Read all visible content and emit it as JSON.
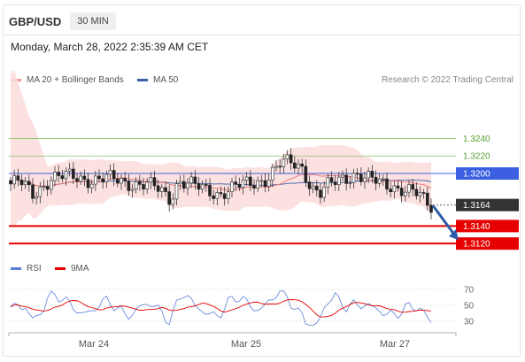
{
  "header": {
    "symbol": "GBP/USD",
    "timeframe": "30 MIN"
  },
  "timestamp": "Monday, March 28, 2022 2:35:39 AM CET",
  "legend": {
    "ma20": "MA 20 + Bollinger Bands",
    "ma50": "MA 50",
    "rsi": "RSI",
    "ma9": "9MA",
    "credit": "Research © 2022 Trading Central"
  },
  "colors": {
    "ma20": "#e8706f",
    "band_fill": "#fbdcdc",
    "ma50": "#3a5fa8",
    "resistance": "#8cc36a",
    "pivot": "#3b5fe0",
    "support": "#e60000",
    "current": "#333333",
    "rsi": "#5b7fd8",
    "rsi_ma": "#e60000",
    "arrow": "#2d5ba8"
  },
  "chart_data": [
    {
      "type": "line",
      "title": "GBP/USD 30 MIN",
      "x_ticks": [
        "Mar 24",
        "Mar 25",
        "Mar 27"
      ],
      "ylim": [
        1.3105,
        1.3292
      ],
      "series": [
        {
          "name": "MA 20 + Bollinger Bands"
        },
        {
          "name": "MA 50"
        }
      ],
      "levels": [
        {
          "label": "1.3240",
          "value": 1.324,
          "kind": "resistance"
        },
        {
          "label": "1.3220",
          "value": 1.322,
          "kind": "resistance"
        },
        {
          "label": "1.3200",
          "value": 1.32,
          "kind": "pivot"
        },
        {
          "label": "1.3164",
          "value": 1.3164,
          "kind": "current"
        },
        {
          "label": "1.3140",
          "value": 1.314,
          "kind": "support"
        },
        {
          "label": "1.3120",
          "value": 1.312,
          "kind": "support"
        }
      ],
      "forecast": "down"
    },
    {
      "type": "line",
      "title": "RSI",
      "ylim": [
        20,
        80
      ],
      "y_ticks": [
        "70",
        "50",
        "30"
      ],
      "series": [
        {
          "name": "RSI"
        },
        {
          "name": "9MA"
        }
      ]
    }
  ]
}
